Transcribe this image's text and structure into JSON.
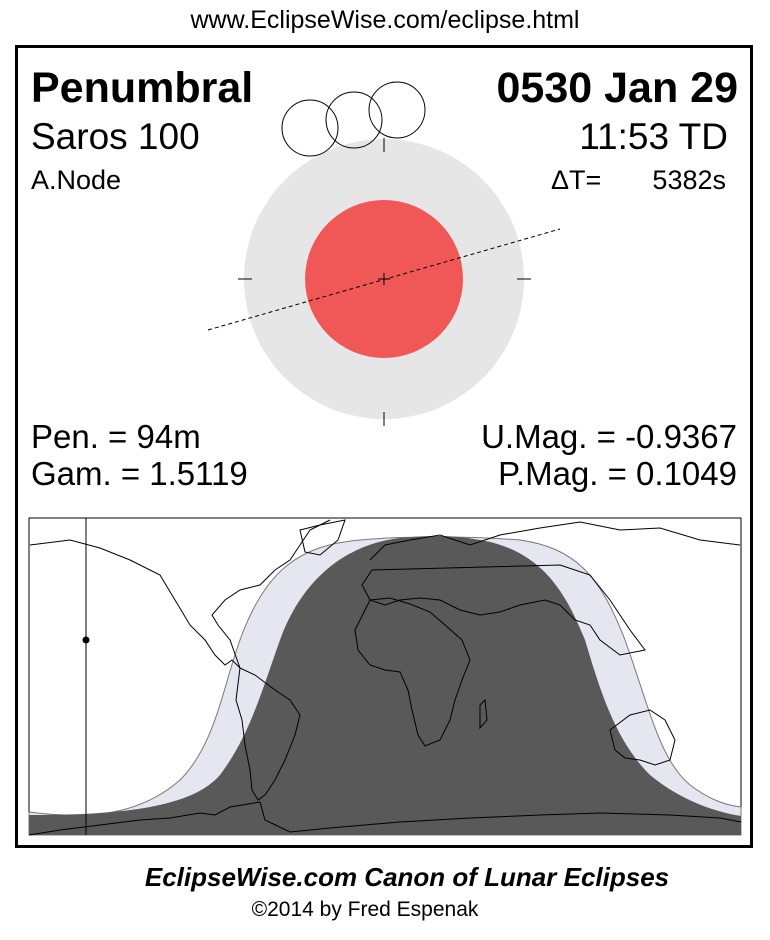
{
  "header": {
    "url": "www.EclipseWise.com/eclipse.html"
  },
  "eclipse": {
    "type": "Penumbral",
    "date": "0530 Jan 29",
    "saros": "Saros 100",
    "time": "11:53 TD",
    "node": "A.Node",
    "delta_t_label": "ΔT=",
    "delta_t_value": "5382s",
    "pen_duration": "Pen. =  94m",
    "gamma": "Gam. = 1.5119",
    "umbral_mag": "U.Mag. = -0.9367",
    "penumbral_mag": "P.Mag. = 0.1049"
  },
  "colors": {
    "umbra": "#f05757",
    "penumbra": "#e6e6e6",
    "map_umbral_zone": "#595959",
    "map_penumbral_zone": "#e6e6f0"
  },
  "footer": {
    "credit": "EclipseWise.com Canon of Lunar Eclipses",
    "copyright": "©2014 by Fred Espenak"
  }
}
